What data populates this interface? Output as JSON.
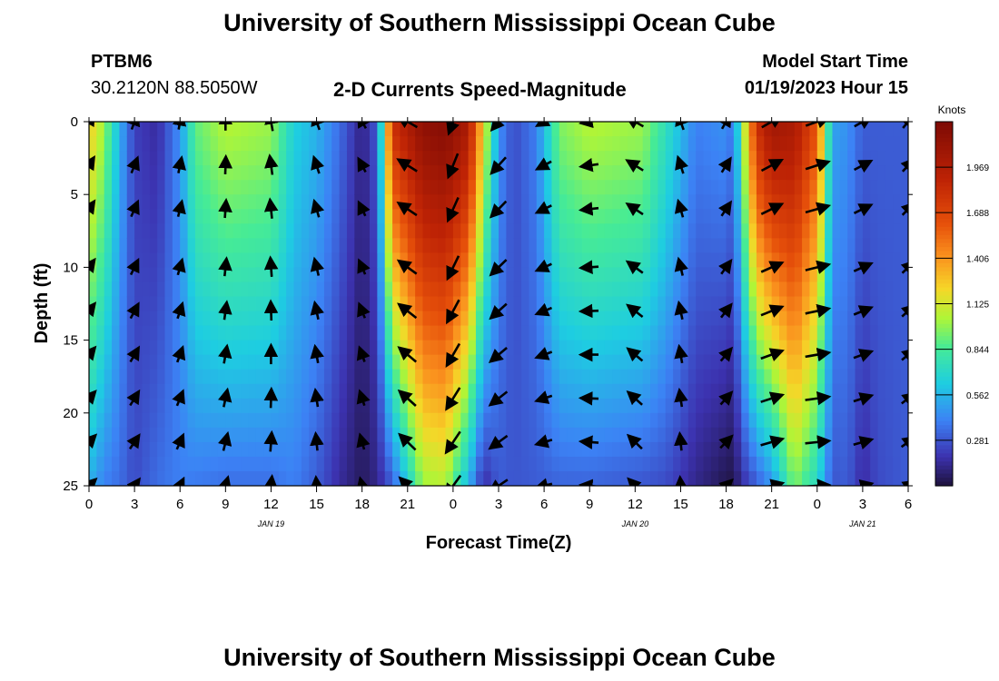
{
  "page": {
    "title": "University of Southern Mississippi Ocean Cube",
    "footer_title": "University of Southern Mississippi Ocean Cube"
  },
  "header": {
    "station_id": "PTBM6",
    "coordinates": "30.2120N  88.5050W",
    "subtitle": "2-D Currents Speed-Magnitude",
    "model_start_label": "Model Start Time",
    "model_start_value": "01/19/2023 Hour 15"
  },
  "chart_data": {
    "type": "heatmap",
    "title": "2-D Currents Speed-Magnitude",
    "xlabel": "Forecast Time(Z)",
    "ylabel": "Depth (ft)",
    "x_tick_labels": [
      "0",
      "3",
      "6",
      "9",
      "12",
      "15",
      "18",
      "21",
      "0",
      "3",
      "6",
      "9",
      "12",
      "15",
      "18",
      "21",
      "0",
      "3",
      "6"
    ],
    "x_date_labels": [
      "JAN 19",
      "JAN 20",
      "JAN 21"
    ],
    "x_date_label_hours": [
      12,
      36,
      51
    ],
    "y_ticks": [
      0,
      5,
      10,
      15,
      20,
      25
    ],
    "ylim": [
      0,
      25
    ],
    "xlim_hours": [
      0,
      54
    ],
    "y_inverted": true,
    "colorbar": {
      "label": "Knots",
      "ticks": [
        "1.969",
        "1.688",
        "1.406",
        "1.125",
        "0.844",
        "0.562",
        "0.281"
      ],
      "tick_values": [
        1.969,
        1.688,
        1.406,
        1.125,
        0.844,
        0.562,
        0.281
      ],
      "min": 0.0,
      "max": 2.25
    },
    "speed_profile_hours": [
      0,
      1,
      2,
      3,
      4.5,
      6,
      7,
      9,
      12,
      13.5,
      15,
      16.5,
      18,
      19,
      20,
      22,
      23.5,
      25,
      26,
      27,
      28,
      29.5,
      31,
      33,
      36.5,
      38,
      40,
      42,
      42.5,
      43,
      44,
      45,
      46.5,
      48,
      49,
      50,
      51,
      52,
      54
    ],
    "speed_surface_knots": [
      1.25,
      1.0,
      0.55,
      0.22,
      0.15,
      0.45,
      0.9,
      1.05,
      1.0,
      0.65,
      0.55,
      0.35,
      0.1,
      0.3,
      1.8,
      2.15,
      2.2,
      2.0,
      1.2,
      0.45,
      0.25,
      0.4,
      0.95,
      1.05,
      1.0,
      0.75,
      0.4,
      0.45,
      0.35,
      0.9,
      1.8,
      2.05,
      2.0,
      1.6,
      0.5,
      0.45,
      0.3,
      0.3,
      0.3
    ],
    "speed_bottom_knots": [
      0.55,
      0.4,
      0.35,
      0.25,
      0.35,
      0.4,
      0.38,
      0.35,
      0.35,
      0.4,
      0.3,
      0.15,
      0.05,
      0.12,
      0.3,
      1.0,
      1.05,
      0.55,
      0.15,
      0.3,
      0.28,
      0.3,
      0.32,
      0.32,
      0.28,
      0.25,
      0.12,
      0.03,
      0.02,
      0.15,
      0.3,
      0.45,
      0.95,
      0.7,
      0.28,
      0.3,
      0.15,
      0.25,
      0.3
    ],
    "vector_hours": [
      0,
      3,
      6,
      9,
      12,
      15,
      18,
      21,
      24,
      27,
      30,
      33,
      36,
      39,
      42,
      45,
      48,
      51,
      54
    ],
    "vector_depths_ft": [
      0,
      3,
      6,
      10,
      13,
      16,
      19,
      22,
      25
    ],
    "vector_directions_deg": [
      30,
      20,
      10,
      0,
      350,
      340,
      330,
      300,
      200,
      220,
      240,
      260,
      300,
      340,
      30,
      60,
      70,
      60,
      40
    ],
    "vector_speeds_knots": [
      1.0,
      0.6,
      0.5,
      0.8,
      1.0,
      0.7,
      0.4,
      1.5,
      2.0,
      1.4,
      0.6,
      0.8,
      1.0,
      0.7,
      0.6,
      1.6,
      1.8,
      1.0,
      0.6
    ]
  }
}
